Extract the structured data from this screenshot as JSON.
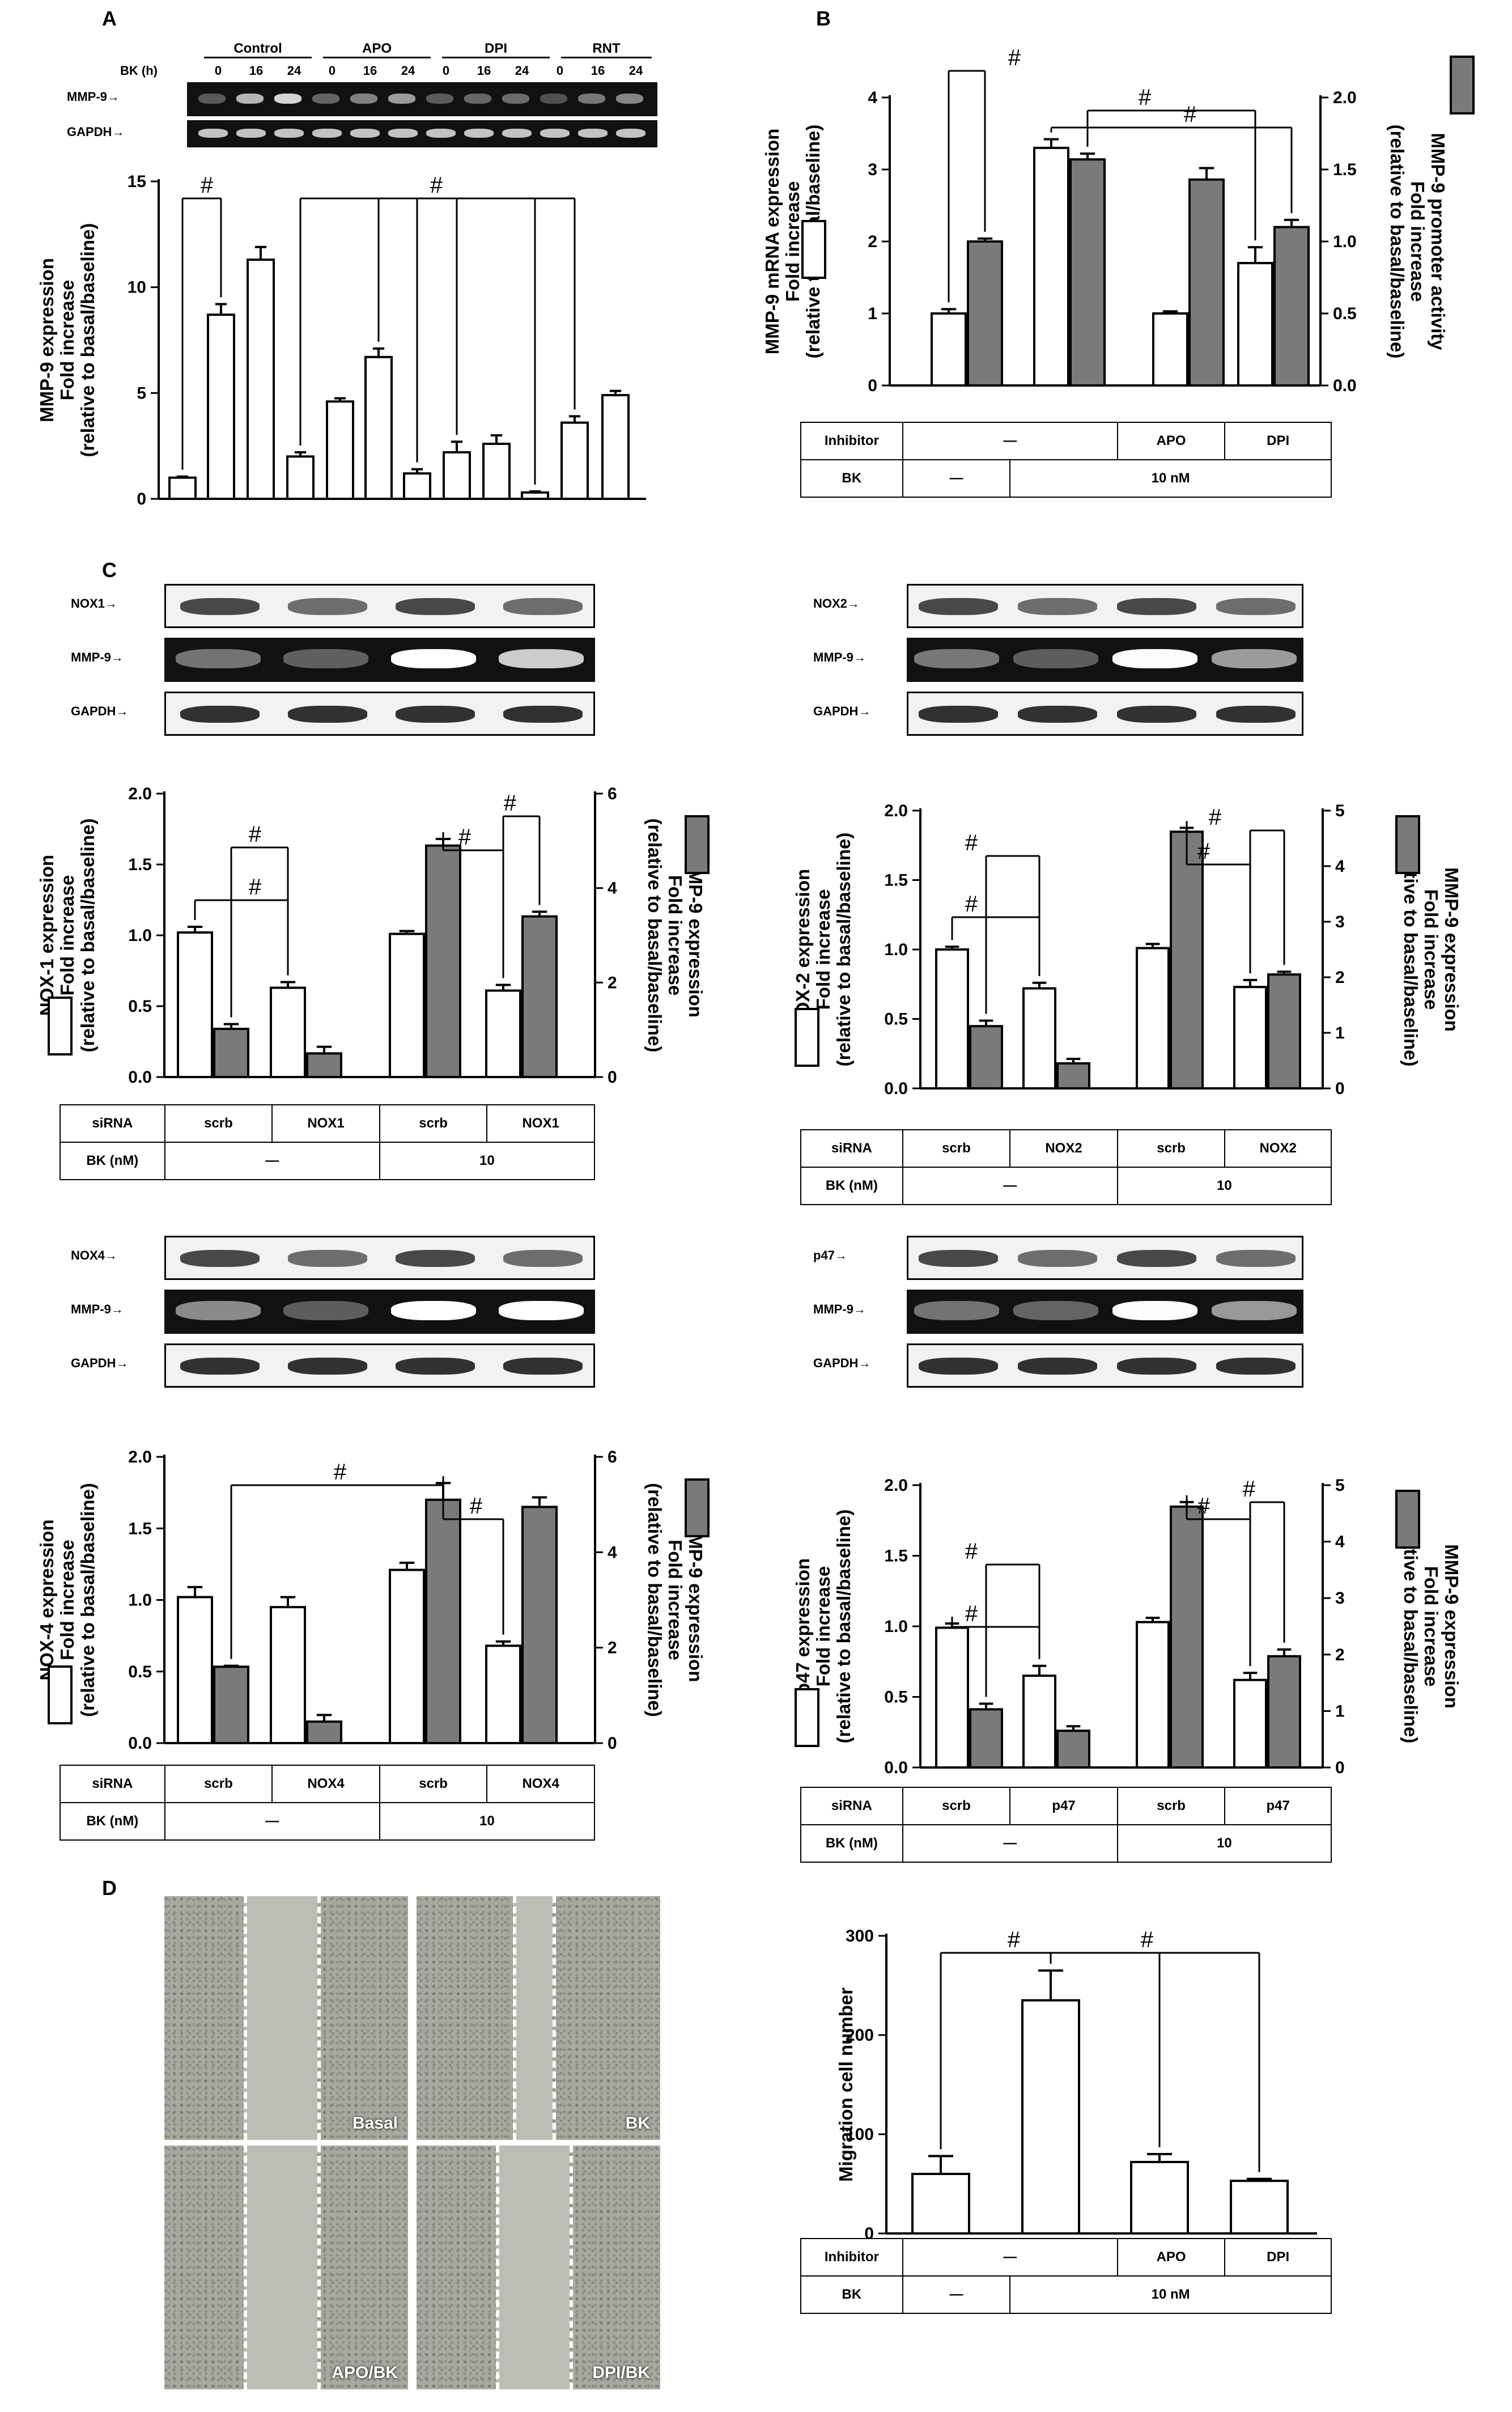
{
  "panels": {
    "a": "A",
    "b": "B",
    "c": "C",
    "d": "D"
  },
  "panel_a_blot": {
    "bk_label": "BK (h)",
    "groups": [
      "Control",
      "APO",
      "DPI",
      "RNT"
    ],
    "times": [
      "0",
      "16",
      "24",
      "0",
      "16",
      "24",
      "0",
      "16",
      "24",
      "0",
      "16",
      "24"
    ],
    "rows": [
      "MMP-9",
      "GAPDH"
    ]
  },
  "panel_c_blots": [
    {
      "rows": [
        "NOX1",
        "MMP-9",
        "GAPDH"
      ]
    },
    {
      "rows": [
        "NOX2",
        "MMP-9",
        "GAPDH"
      ]
    },
    {
      "rows": [
        "NOX4",
        "MMP-9",
        "GAPDH"
      ]
    },
    {
      "rows": [
        "p47",
        "MMP-9",
        "GAPDH"
      ]
    }
  ],
  "tables": {
    "b": {
      "row1_label": "Inhibitor",
      "row1": [
        "—",
        "APO",
        "DPI"
      ],
      "row2_label": "BK",
      "row2": [
        "—",
        "10 nM"
      ]
    },
    "c1": {
      "row1_label": "siRNA",
      "row1": [
        "scrb",
        "NOX1",
        "scrb",
        "NOX1"
      ],
      "row2_label": "BK (nM)",
      "row2": [
        "—",
        "10"
      ]
    },
    "c2": {
      "row1_label": "siRNA",
      "row1": [
        "scrb",
        "NOX2",
        "scrb",
        "NOX2"
      ],
      "row2_label": "BK (nM)",
      "row2": [
        "—",
        "10"
      ]
    },
    "c3": {
      "row1_label": "siRNA",
      "row1": [
        "scrb",
        "NOX4",
        "scrb",
        "NOX4"
      ],
      "row2_label": "BK (nM)",
      "row2": [
        "—",
        "10"
      ]
    },
    "c4": {
      "row1_label": "siRNA",
      "row1": [
        "scrb",
        "p47",
        "scrb",
        "p47"
      ],
      "row2_label": "BK (nM)",
      "row2": [
        "—",
        "10"
      ]
    },
    "d": {
      "row1_label": "Inhibitor",
      "row1": [
        "—",
        "APO",
        "DPI"
      ],
      "row2_label": "BK",
      "row2": [
        "—",
        "10 nM"
      ]
    }
  },
  "micrographs": [
    "Basal",
    "BK",
    "APO/BK",
    "DPI/BK"
  ],
  "colors": {
    "open_bar": "#ffffff",
    "gray_bar": "#7a7a7a",
    "ink": "#000000"
  },
  "chart_data": [
    {
      "id": "A",
      "type": "bar",
      "ylabel_lines": [
        "MMP-9 expression",
        "Fold increase",
        "(relative to basal/baseline)"
      ],
      "ylim": [
        0,
        15
      ],
      "yticks": [
        0,
        5,
        10,
        15
      ],
      "values": [
        1.0,
        8.7,
        11.3,
        2.0,
        4.6,
        6.7,
        1.2,
        2.2,
        2.6,
        0.3,
        3.6,
        4.9
      ],
      "errors": [
        0.05,
        0.5,
        0.6,
        0.2,
        0.15,
        0.4,
        0.2,
        0.5,
        0.4,
        0.05,
        0.3,
        0.2
      ],
      "annotations": [
        "#",
        "#"
      ]
    },
    {
      "id": "B",
      "type": "bar",
      "ylabel_left_lines": [
        "MMP-9 mRNA expression",
        "Fold increase",
        "(relative to basal/baseline)"
      ],
      "ylabel_right_lines": [
        "MMP-9 promoter activity",
        "Fold increase",
        "(relative to basal/baseline)"
      ],
      "ylim_left": [
        0,
        4
      ],
      "yticks_left": [
        "0",
        "1",
        "2",
        "3",
        "4"
      ],
      "ylim_right": [
        0,
        2
      ],
      "yticks_right": [
        "0.0",
        "0.5",
        "1.0",
        "1.5",
        "2.0"
      ],
      "series": [
        {
          "values": [
            1.0,
            3.3,
            1.0,
            1.7
          ],
          "errors": [
            0.06,
            0.12,
            0.03,
            0.22
          ]
        },
        {
          "values": [
            1.0,
            1.57,
            1.43,
            1.1
          ],
          "errors": [
            0.02,
            0.04,
            0.08,
            0.05
          ]
        }
      ],
      "annotations": [
        "#",
        "#",
        "#"
      ]
    },
    {
      "id": "C-NOX1",
      "type": "bar",
      "ylabel_left_lines": [
        "NOX-1 expression",
        "Fold increase",
        "(relative to basal/baseline)"
      ],
      "ylabel_right_lines": [
        "MMP-9 expression",
        "Fold increase",
        "(relative to basal/baseline)"
      ],
      "ylim_left": [
        0,
        2
      ],
      "yticks_left": [
        "0.0",
        "0.5",
        "1.0",
        "1.5",
        "2.0"
      ],
      "ylim_right": [
        0,
        6
      ],
      "yticks_right": [
        "0",
        "2",
        "4",
        "6"
      ],
      "series": [
        {
          "values": [
            1.02,
            0.63,
            1.01,
            0.61
          ],
          "errors": [
            0.04,
            0.04,
            0.02,
            0.04
          ]
        },
        {
          "values": [
            1.02,
            0.5,
            4.9,
            3.4
          ],
          "errors": [
            0.1,
            0.14,
            0.14,
            0.1
          ]
        }
      ],
      "annotations": [
        "#",
        "#",
        "#",
        "#"
      ]
    },
    {
      "id": "C-NOX2",
      "type": "bar",
      "ylabel_left_lines": [
        "NOX-2 expression",
        "Fold increase",
        "(relative to basal/baseline)"
      ],
      "ylabel_right_lines": [
        "MMP-9 expression",
        "Fold increase",
        "(relative to basal/baseline)"
      ],
      "ylim_left": [
        0,
        2
      ],
      "yticks_left": [
        "0.0",
        "0.5",
        "1.0",
        "1.5",
        "2.0"
      ],
      "ylim_right": [
        0,
        5
      ],
      "yticks_right": [
        "0",
        "1",
        "2",
        "3",
        "4",
        "5"
      ],
      "series": [
        {
          "values": [
            1.0,
            0.72,
            1.01,
            0.73
          ],
          "errors": [
            0.02,
            0.04,
            0.03,
            0.05
          ]
        },
        {
          "values": [
            1.12,
            0.45,
            4.62,
            2.05
          ],
          "errors": [
            0.1,
            0.08,
            0.07,
            0.05
          ]
        }
      ],
      "annotations": [
        "#",
        "#",
        "#",
        "#"
      ]
    },
    {
      "id": "C-NOX4",
      "type": "bar",
      "ylabel_left_lines": [
        "NOX-4 expression",
        "Fold increase",
        "(relative to basal/baseline)"
      ],
      "ylabel_right_lines": [
        "MMP-9 expression",
        "Fold increase",
        "(relative to basal/baseline)"
      ],
      "ylim_left": [
        0,
        2
      ],
      "yticks_left": [
        "0.0",
        "0.5",
        "1.0",
        "1.5",
        "2.0"
      ],
      "ylim_right": [
        0,
        6
      ],
      "yticks_right": [
        "0",
        "2",
        "4",
        "6"
      ],
      "series": [
        {
          "values": [
            1.02,
            0.95,
            1.21,
            0.68
          ],
          "errors": [
            0.07,
            0.07,
            0.05,
            0.03
          ]
        },
        {
          "values": [
            1.6,
            0.45,
            5.1,
            4.95
          ],
          "errors": [
            0.02,
            0.14,
            0.35,
            0.2
          ]
        }
      ],
      "annotations": [
        "#",
        "#"
      ]
    },
    {
      "id": "C-p47",
      "type": "bar",
      "ylabel_left_lines": [
        "p47 expression",
        "Fold increase",
        "(relative to basal/baseline)"
      ],
      "ylabel_right_lines": [
        "MMP-9 expression",
        "Fold increase",
        "(relative to basal/baseline)"
      ],
      "ylim_left": [
        0,
        2
      ],
      "yticks_left": [
        "0.0",
        "0.5",
        "1.0",
        "1.5",
        "2.0"
      ],
      "ylim_right": [
        0,
        5
      ],
      "yticks_right": [
        "0",
        "1",
        "2",
        "3",
        "4",
        "5"
      ],
      "series": [
        {
          "values": [
            0.99,
            0.65,
            1.03,
            0.62
          ],
          "errors": [
            0.03,
            0.07,
            0.03,
            0.05
          ]
        },
        {
          "values": [
            1.03,
            0.65,
            4.62,
            1.97
          ],
          "errors": [
            0.1,
            0.08,
            0.08,
            0.12
          ]
        }
      ],
      "annotations": [
        "#",
        "#",
        "#",
        "#"
      ]
    },
    {
      "id": "D",
      "type": "bar",
      "ylabel": "Migration cell number",
      "ylim": [
        0,
        300
      ],
      "yticks": [
        0,
        100,
        200,
        300
      ],
      "values": [
        60,
        235,
        72,
        53
      ],
      "errors": [
        18,
        30,
        8,
        2
      ],
      "annotations": [
        "#",
        "#"
      ]
    }
  ]
}
